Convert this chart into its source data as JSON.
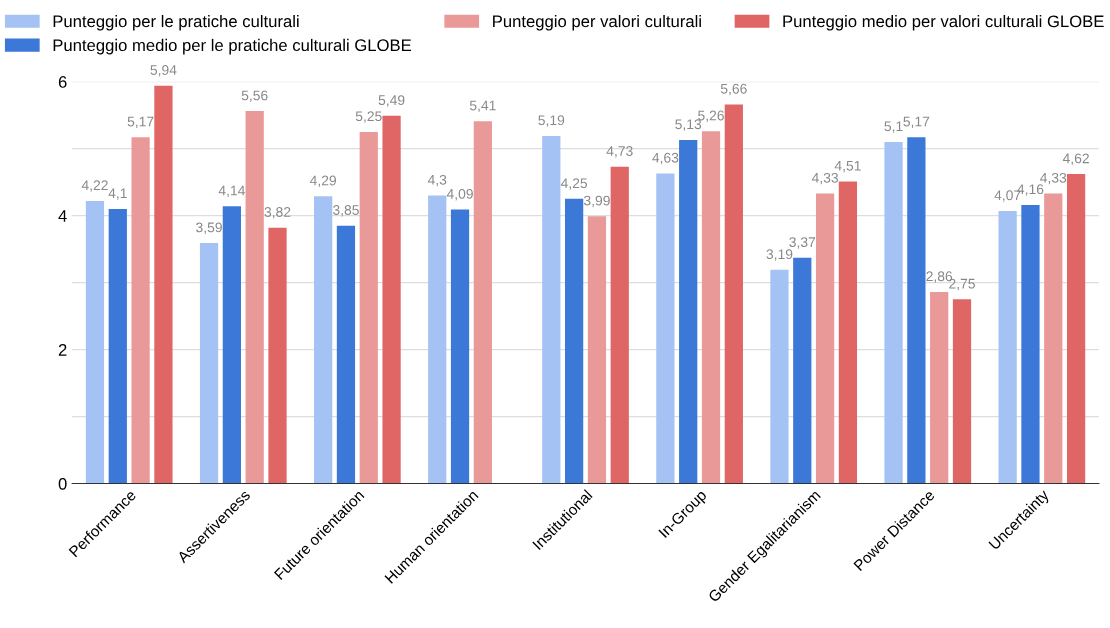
{
  "chart_data": {
    "type": "bar",
    "categories": [
      "Performance",
      "Assertiveness",
      "Future orientation",
      "Human orientation",
      "Institutional",
      "In-Group",
      "Gender Egalitarianism",
      "Power Distance",
      "Uncertainty"
    ],
    "series": [
      {
        "name": "Punteggio per le pratiche culturali",
        "color": "#a4c2f4",
        "values": [
          4.22,
          3.59,
          4.29,
          4.3,
          5.19,
          4.63,
          3.19,
          5.1,
          4.07
        ],
        "value_labels": [
          "4,22",
          "3,59",
          "4,29",
          "4,3",
          "5,19",
          "4,63",
          "3,19",
          "5,1",
          "4,07"
        ]
      },
      {
        "name": "Punteggio medio per le pratiche culturali GLOBE",
        "color": "#3c78d8",
        "values": [
          4.1,
          4.14,
          3.85,
          4.09,
          4.25,
          5.13,
          3.37,
          5.17,
          4.16
        ],
        "value_labels": [
          "4,1",
          "4,14",
          "3,85",
          "4,09",
          "4,25",
          "5,13",
          "3,37",
          "5,17",
          "4,16"
        ]
      },
      {
        "name": "Punteggio per valori culturali",
        "color": "#ea9999",
        "values": [
          5.17,
          5.56,
          5.25,
          5.41,
          3.99,
          5.26,
          4.33,
          2.86,
          4.33
        ],
        "value_labels": [
          "5,17",
          "5,56",
          "5,25",
          "5,41",
          "3,99",
          "5,26",
          "4,33",
          "2,86",
          "4,33"
        ]
      },
      {
        "name": "Punteggio medio per valori culturali GLOBE",
        "color": "#e06666",
        "values": [
          5.94,
          3.82,
          5.49,
          null,
          4.73,
          5.66,
          4.51,
          2.75,
          4.62
        ],
        "value_labels": [
          "5,94",
          "3,82",
          "5,49",
          null,
          "4,73",
          "5,66",
          "4,51",
          "2,75",
          "4,62"
        ]
      }
    ],
    "ylim": [
      0,
      6
    ],
    "yticks": [
      0,
      {
        "value": 1,
        "label": null
      },
      2,
      {
        "value": 3,
        "label": null
      },
      4,
      {
        "value": 5,
        "label": null
      },
      6
    ],
    "grid": "y",
    "legend": "top"
  }
}
